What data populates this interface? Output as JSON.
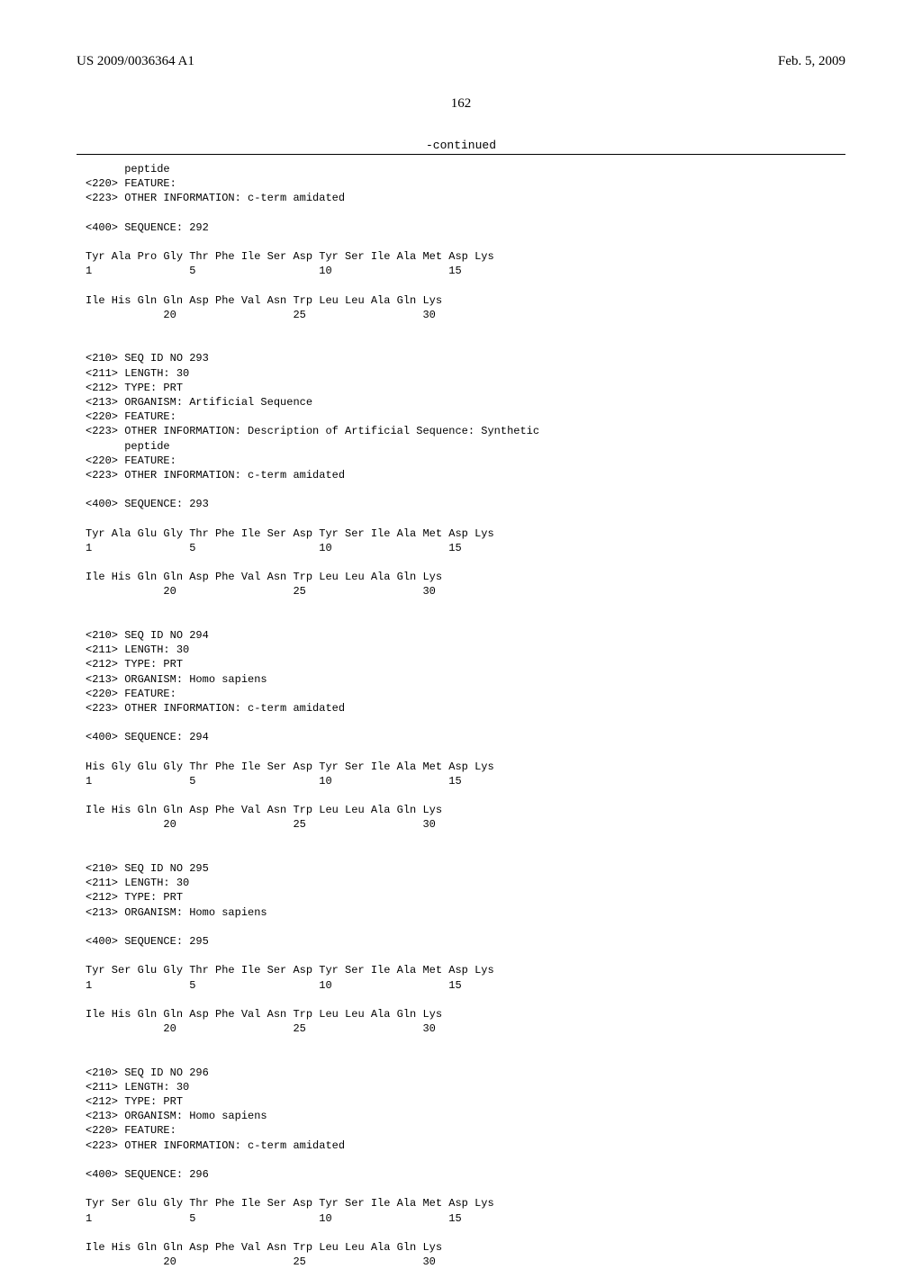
{
  "header": {
    "pub_number": "US 2009/0036364 A1",
    "pub_date": "Feb. 5, 2009"
  },
  "page_number": "162",
  "continued_label": "-continued",
  "blocks": {
    "b292_tail": "      peptide\n<220> FEATURE:\n<223> OTHER INFORMATION: c-term amidated\n\n<400> SEQUENCE: 292\n\nTyr Ala Pro Gly Thr Phe Ile Ser Asp Tyr Ser Ile Ala Met Asp Lys\n1               5                   10                  15\n\nIle His Gln Gln Asp Phe Val Asn Trp Leu Leu Ala Gln Lys\n            20                  25                  30",
    "b293": "<210> SEQ ID NO 293\n<211> LENGTH: 30\n<212> TYPE: PRT\n<213> ORGANISM: Artificial Sequence\n<220> FEATURE:\n<223> OTHER INFORMATION: Description of Artificial Sequence: Synthetic\n      peptide\n<220> FEATURE:\n<223> OTHER INFORMATION: c-term amidated\n\n<400> SEQUENCE: 293\n\nTyr Ala Glu Gly Thr Phe Ile Ser Asp Tyr Ser Ile Ala Met Asp Lys\n1               5                   10                  15\n\nIle His Gln Gln Asp Phe Val Asn Trp Leu Leu Ala Gln Lys\n            20                  25                  30",
    "b294": "<210> SEQ ID NO 294\n<211> LENGTH: 30\n<212> TYPE: PRT\n<213> ORGANISM: Homo sapiens\n<220> FEATURE:\n<223> OTHER INFORMATION: c-term amidated\n\n<400> SEQUENCE: 294\n\nHis Gly Glu Gly Thr Phe Ile Ser Asp Tyr Ser Ile Ala Met Asp Lys\n1               5                   10                  15\n\nIle His Gln Gln Asp Phe Val Asn Trp Leu Leu Ala Gln Lys\n            20                  25                  30",
    "b295": "<210> SEQ ID NO 295\n<211> LENGTH: 30\n<212> TYPE: PRT\n<213> ORGANISM: Homo sapiens\n\n<400> SEQUENCE: 295\n\nTyr Ser Glu Gly Thr Phe Ile Ser Asp Tyr Ser Ile Ala Met Asp Lys\n1               5                   10                  15\n\nIle His Gln Gln Asp Phe Val Asn Trp Leu Leu Ala Gln Lys\n            20                  25                  30",
    "b296": "<210> SEQ ID NO 296\n<211> LENGTH: 30\n<212> TYPE: PRT\n<213> ORGANISM: Homo sapiens\n<220> FEATURE:\n<223> OTHER INFORMATION: c-term amidated\n\n<400> SEQUENCE: 296\n\nTyr Ser Glu Gly Thr Phe Ile Ser Asp Tyr Ser Ile Ala Met Asp Lys\n1               5                   10                  15\n\nIle His Gln Gln Asp Phe Val Asn Trp Leu Leu Ala Gln Lys\n            20                  25                  30"
  }
}
